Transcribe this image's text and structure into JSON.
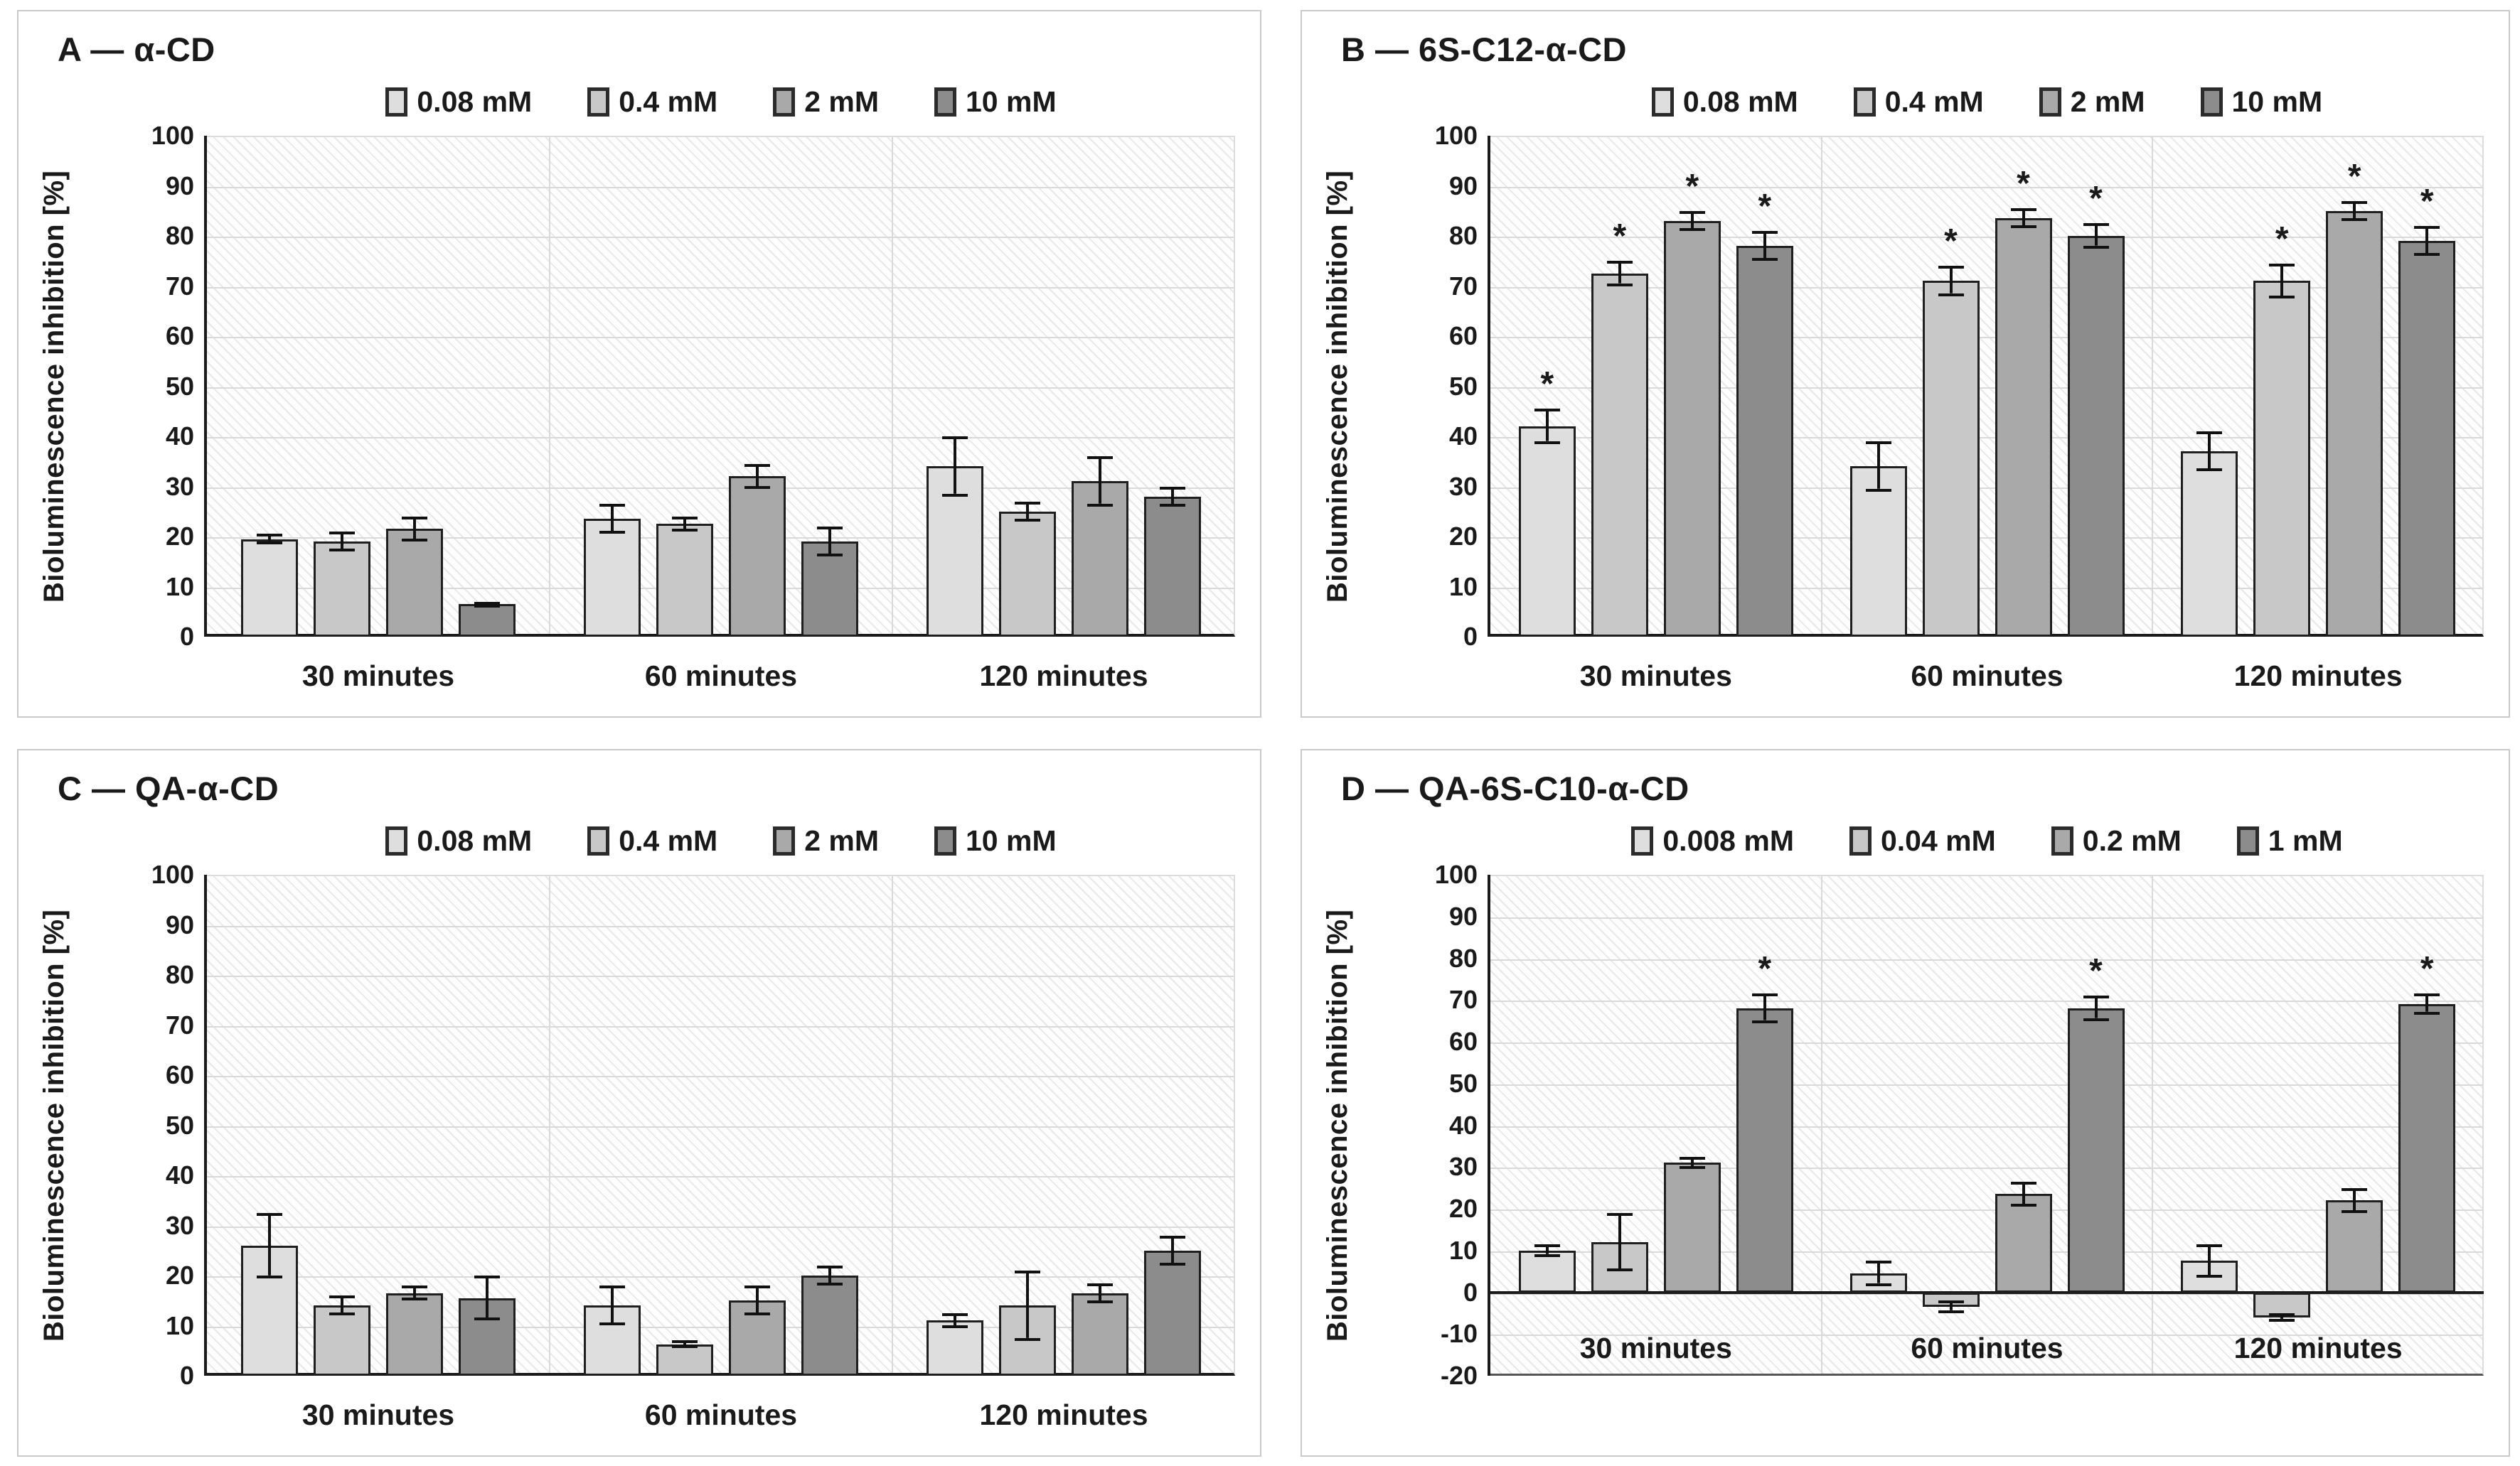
{
  "figure": {
    "ylabel": "Bioluminescence inhibition [%]",
    "significance_marker": "*",
    "colors": {
      "series1": "#dedede",
      "series2": "#c8c8c8",
      "series3": "#a9a9a9",
      "series4": "#8c8c8c",
      "bar_border": "#1f1f1f",
      "gridline": "#d9d9d9",
      "panel_border": "#c9c9c9",
      "axis": "#1a1a1a"
    }
  },
  "chart_data": [
    {
      "id": "A",
      "type": "bar",
      "title": "A — α-CD",
      "ylabel": "Bioluminescence inhibition [%]",
      "ylim": [
        0,
        100
      ],
      "ystep": 10,
      "yticks": [
        100,
        90,
        80,
        70,
        60,
        50,
        40,
        30,
        20,
        10,
        0
      ],
      "grid": true,
      "legend_position": "top",
      "categories": [
        "30 minutes",
        "60 minutes",
        "120 minutes"
      ],
      "series": [
        {
          "name": "0.08 mM",
          "color": "#dedede",
          "values": [
            19.5,
            23.5,
            34
          ],
          "errors": [
            1,
            3,
            6
          ],
          "sig": [
            false,
            false,
            false
          ]
        },
        {
          "name": "0.4 mM",
          "color": "#c8c8c8",
          "values": [
            19,
            22.5,
            25
          ],
          "errors": [
            2,
            1.5,
            2
          ],
          "sig": [
            false,
            false,
            false
          ]
        },
        {
          "name": "2 mM",
          "color": "#a9a9a9",
          "values": [
            21.5,
            32,
            31
          ],
          "errors": [
            2.5,
            2.5,
            5
          ],
          "sig": [
            false,
            false,
            false
          ]
        },
        {
          "name": "10 mM",
          "color": "#8c8c8c",
          "values": [
            6.5,
            19,
            28
          ],
          "errors": [
            0.5,
            3,
            2
          ],
          "sig": [
            false,
            false,
            false
          ]
        }
      ]
    },
    {
      "id": "B",
      "type": "bar",
      "title": "B — 6S-C12-α-CD",
      "ylabel": "Bioluminescence inhibition [%]",
      "ylim": [
        0,
        100
      ],
      "ystep": 10,
      "yticks": [
        100,
        90,
        80,
        70,
        60,
        50,
        40,
        30,
        20,
        10,
        0
      ],
      "grid": true,
      "legend_position": "top",
      "categories": [
        "30 minutes",
        "60 minutes",
        "120 minutes"
      ],
      "series": [
        {
          "name": "0.08 mM",
          "color": "#dedede",
          "values": [
            42,
            34,
            37
          ],
          "errors": [
            3.5,
            5,
            4
          ],
          "sig": [
            true,
            false,
            false
          ]
        },
        {
          "name": "0.4 mM",
          "color": "#c8c8c8",
          "values": [
            72.5,
            71,
            71
          ],
          "errors": [
            2.5,
            3,
            3.5
          ],
          "sig": [
            true,
            true,
            true
          ]
        },
        {
          "name": "2 mM",
          "color": "#a9a9a9",
          "values": [
            83,
            83.5,
            85
          ],
          "errors": [
            2,
            2,
            2
          ],
          "sig": [
            true,
            true,
            true
          ]
        },
        {
          "name": "10 mM",
          "color": "#8c8c8c",
          "values": [
            78,
            80,
            79
          ],
          "errors": [
            3,
            2.5,
            3
          ],
          "sig": [
            true,
            true,
            true
          ]
        }
      ]
    },
    {
      "id": "C",
      "type": "bar",
      "title": "C — QA-α-CD",
      "ylabel": "Bioluminescence inhibition [%]",
      "ylim": [
        0,
        100
      ],
      "ystep": 10,
      "yticks": [
        100,
        90,
        80,
        70,
        60,
        50,
        40,
        30,
        20,
        10,
        0
      ],
      "grid": true,
      "legend_position": "top",
      "categories": [
        "30 minutes",
        "60 minutes",
        "120 minutes"
      ],
      "series": [
        {
          "name": "0.08 mM",
          "color": "#dedede",
          "values": [
            26,
            14,
            11
          ],
          "errors": [
            6.5,
            4,
            1.5
          ],
          "sig": [
            false,
            false,
            false
          ]
        },
        {
          "name": "0.4 mM",
          "color": "#c8c8c8",
          "values": [
            14,
            6.3,
            14
          ],
          "errors": [
            2,
            0.8,
            7
          ],
          "sig": [
            false,
            false,
            false
          ]
        },
        {
          "name": "2 mM",
          "color": "#a9a9a9",
          "values": [
            16.5,
            15,
            16.5
          ],
          "errors": [
            1.5,
            3,
            2
          ],
          "sig": [
            false,
            false,
            false
          ]
        },
        {
          "name": "10 mM",
          "color": "#8c8c8c",
          "values": [
            15.5,
            20,
            25
          ],
          "errors": [
            4.5,
            2,
            3
          ],
          "sig": [
            false,
            false,
            false
          ]
        }
      ]
    },
    {
      "id": "D",
      "type": "bar",
      "title": "D — QA-6S-C10-α-CD",
      "ylabel": "Bioluminescence inhibition [%]",
      "ylim": [
        -20,
        100
      ],
      "ystep": 10,
      "yticks": [
        100,
        90,
        80,
        70,
        60,
        50,
        40,
        30,
        20,
        10,
        0,
        -10,
        -20
      ],
      "grid": true,
      "legend_position": "top",
      "categories": [
        "30 minutes",
        "60 minutes",
        "120 minutes"
      ],
      "series": [
        {
          "name": "0.008 mM",
          "color": "#dedede",
          "values": [
            10,
            4.5,
            7.5
          ],
          "errors": [
            1.5,
            3,
            4
          ],
          "sig": [
            false,
            false,
            false
          ]
        },
        {
          "name": "0.04 mM",
          "color": "#c8c8c8",
          "values": [
            12,
            -3.5,
            -6
          ],
          "errors": [
            7,
            1.5,
            1
          ],
          "sig": [
            false,
            false,
            false
          ]
        },
        {
          "name": "0.2 mM",
          "color": "#a9a9a9",
          "values": [
            31,
            23.5,
            22
          ],
          "errors": [
            1.5,
            3,
            3
          ],
          "sig": [
            false,
            false,
            false
          ]
        },
        {
          "name": "1 mM",
          "color": "#8c8c8c",
          "values": [
            68,
            68,
            69
          ],
          "errors": [
            3.5,
            3,
            2.5
          ],
          "sig": [
            true,
            true,
            true
          ]
        }
      ]
    }
  ]
}
